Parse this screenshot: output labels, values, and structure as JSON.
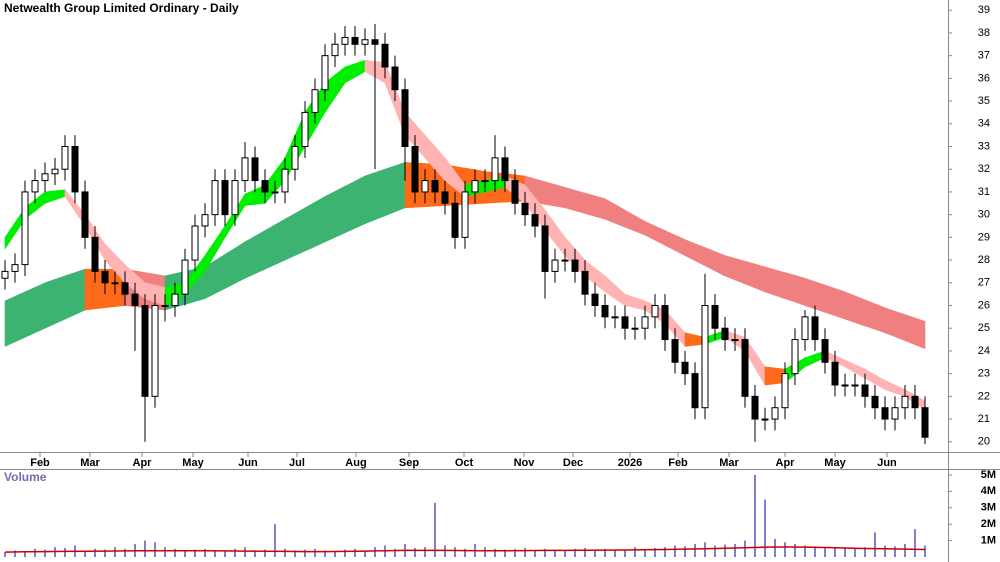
{
  "chart_data": {
    "type": "candlestick",
    "title": "Netwealth Group Limited Ordinary - Daily",
    "x": [
      0,
      1,
      2,
      3,
      4,
      5,
      6,
      7,
      8,
      9,
      10,
      11,
      12,
      13,
      14,
      15,
      16,
      17,
      18,
      19,
      20,
      21,
      22,
      23,
      24,
      25,
      26,
      27,
      28,
      29,
      30,
      31,
      32,
      33,
      34,
      35,
      36,
      37,
      38,
      39,
      40,
      41,
      42,
      43,
      44,
      45,
      46,
      47,
      48,
      49,
      50,
      51,
      52,
      53,
      54,
      55,
      56,
      57,
      58,
      59,
      60,
      61,
      62,
      63,
      64,
      65,
      66,
      67,
      68,
      69,
      70,
      71,
      72,
      73,
      74,
      75,
      76,
      77,
      78,
      79,
      80,
      81,
      82,
      83,
      84,
      85,
      86,
      87,
      88,
      89,
      90,
      91,
      92
    ],
    "open": [
      27.2,
      27.5,
      27.8,
      31,
      31.5,
      31.8,
      32,
      33,
      31,
      29,
      27.5,
      27,
      27,
      26.5,
      26,
      22,
      26,
      26,
      26.5,
      28,
      29.5,
      30,
      31.5,
      30,
      31.5,
      32.5,
      31.5,
      31,
      31,
      32,
      33,
      34.5,
      35.5,
      37,
      37.5,
      37.8,
      37.5,
      37.7,
      37.5,
      36.5,
      35.5,
      33,
      31,
      31.5,
      31,
      30.5,
      29,
      31,
      31.5,
      31.5,
      32.5,
      31.5,
      30.5,
      30,
      29.5,
      27.5,
      28,
      28,
      27.5,
      26.5,
      26,
      25.5,
      25.5,
      25,
      25,
      25.5,
      26,
      24.5,
      23.5,
      23,
      21.5,
      26,
      25,
      24.5,
      24.5,
      22,
      21,
      21,
      21.5,
      23,
      24.5,
      25.5,
      24.5,
      23.5,
      22.5,
      22.5,
      22.5,
      22,
      21.5,
      21,
      21.5,
      22,
      21.5
    ],
    "high": [
      28,
      28.3,
      31.5,
      32,
      32.3,
      32.5,
      33.5,
      33.5,
      31.5,
      29.5,
      28,
      27.5,
      27.5,
      27,
      26.5,
      26.5,
      26.5,
      27,
      28.5,
      30,
      30.5,
      32,
      32,
      32,
      33.2,
      33,
      32,
      31.5,
      32.5,
      33.5,
      35,
      36,
      37.5,
      38,
      38.3,
      38.3,
      38.2,
      38.4,
      38,
      37,
      36,
      33.5,
      32,
      32,
      31.5,
      31,
      31.5,
      32,
      32,
      33.5,
      33,
      32,
      31,
      30.5,
      30,
      28.5,
      28.5,
      28.5,
      28,
      27,
      26.5,
      26,
      26,
      25.5,
      26,
      26.5,
      26.5,
      25,
      24,
      23.5,
      27.4,
      26.5,
      25.5,
      25,
      25,
      22.5,
      21.5,
      22,
      23.5,
      25,
      25.8,
      26,
      25,
      24,
      23,
      23,
      23,
      22.5,
      22,
      22,
      22.5,
      22.5,
      22
    ],
    "low": [
      26.7,
      27,
      27.3,
      30.5,
      31,
      31.3,
      31.5,
      30.5,
      28.5,
      27,
      26.5,
      26.5,
      26,
      24,
      20,
      21.5,
      25.3,
      25.5,
      26,
      27.5,
      29,
      29.5,
      29.5,
      29.5,
      31,
      31,
      30.5,
      30.5,
      30.5,
      31.5,
      32.5,
      34,
      35,
      36.5,
      37,
      37,
      37,
      32,
      36,
      35,
      31.5,
      30.5,
      30.5,
      30.5,
      30,
      28.5,
      28.5,
      30.5,
      31,
      31,
      31,
      30,
      29.5,
      29,
      26.3,
      27,
      27.5,
      27,
      26,
      25.5,
      25,
      25,
      24.5,
      24.5,
      24.5,
      25,
      24,
      23,
      22.5,
      21,
      21,
      24.5,
      24,
      24,
      21.5,
      20,
      20.5,
      20.5,
      21,
      22.5,
      24,
      24,
      23,
      22,
      22,
      22,
      21.5,
      21,
      20.5,
      20.5,
      21,
      21,
      19.9
    ],
    "close": [
      27.5,
      27.8,
      31,
      31.5,
      31.8,
      32,
      33,
      31,
      29,
      27.5,
      27,
      27,
      26.5,
      26,
      22,
      26,
      26,
      26.5,
      28,
      29.5,
      30,
      31.5,
      30,
      31.5,
      32.5,
      31.5,
      31,
      31,
      32,
      33,
      34.5,
      35.5,
      37,
      37.5,
      37.8,
      37.5,
      37.7,
      37.5,
      36.5,
      35.5,
      33,
      31,
      31.5,
      31,
      30.5,
      29,
      31,
      31.5,
      31.5,
      32.5,
      31.5,
      30.5,
      30,
      29.5,
      27.5,
      28,
      28,
      27.5,
      26.5,
      26,
      25.5,
      25.5,
      25,
      25,
      25.5,
      26,
      24.5,
      23.5,
      23,
      21.5,
      26,
      25,
      24.5,
      24.5,
      22,
      21,
      21,
      21.5,
      23,
      24.5,
      25.5,
      24.5,
      23.5,
      22.5,
      22.5,
      22.5,
      22,
      21.5,
      21,
      21.5,
      22,
      21.5,
      20.2
    ],
    "candle_up_color": "#ffffff",
    "candle_down_color": "#000000",
    "xlim": [
      -0.5,
      94.3
    ],
    "xticks": [
      {
        "value": 3.5,
        "label": "Feb"
      },
      {
        "value": 8.5,
        "label": "Mar"
      },
      {
        "value": 13.7,
        "label": "Apr"
      },
      {
        "value": 18.8,
        "label": "May"
      },
      {
        "value": 24.3,
        "label": "Jun"
      },
      {
        "value": 29.2,
        "label": "Jul"
      },
      {
        "value": 35.1,
        "label": "Aug"
      },
      {
        "value": 40.4,
        "label": "Sep"
      },
      {
        "value": 45.9,
        "label": "Oct"
      },
      {
        "value": 51.9,
        "label": "Nov"
      },
      {
        "value": 56.8,
        "label": "Dec"
      },
      {
        "value": 62.5,
        "label": "2026"
      },
      {
        "value": 67.3,
        "label": "Feb"
      },
      {
        "value": 72.4,
        "label": "Mar"
      },
      {
        "value": 78,
        "label": "Apr"
      },
      {
        "value": 83,
        "label": "May"
      },
      {
        "value": 88.2,
        "label": "Jun"
      }
    ],
    "ylim": [
      19.55,
      39.45
    ],
    "yticks": [
      20,
      21,
      22,
      23,
      24,
      25,
      26,
      27,
      28,
      29,
      30,
      31,
      32,
      33,
      34,
      35,
      36,
      37,
      38,
      39
    ],
    "bands": {
      "x": [
        0,
        2,
        4,
        6,
        8,
        10,
        12,
        14,
        16,
        18,
        20,
        22,
        24,
        26,
        28,
        30,
        32,
        34,
        36,
        38,
        40,
        42,
        44,
        46,
        48,
        50,
        52,
        54,
        56,
        58,
        60,
        62,
        64,
        66,
        68,
        70,
        72,
        74,
        76,
        78,
        80,
        82,
        84,
        86,
        88,
        90,
        92
      ],
      "items": [
        {
          "upper": [
            26.2,
            26.6,
            27,
            27.3,
            27.6,
            27.6,
            27.6,
            27.45,
            27.3,
            27.5,
            27.7,
            28.25,
            28.8,
            29.3,
            29.8,
            30.3,
            30.8,
            31.25,
            31.7,
            32,
            32.3,
            32.25,
            32.2,
            32.05,
            31.9,
            31.8,
            31.7,
            31.45,
            31.2,
            30.95,
            30.7,
            30.2,
            29.7,
            29.3,
            28.9,
            28.55,
            28.2,
            27.95,
            27.7,
            27.45,
            27.2,
            26.9,
            26.6,
            26.25,
            25.9,
            25.6,
            25.3
          ],
          "lower": [
            24.2,
            24.6,
            25,
            25.4,
            25.8,
            25.9,
            26,
            25.9,
            25.8,
            26.05,
            26.3,
            26.75,
            27.2,
            27.6,
            28,
            28.4,
            28.8,
            29.2,
            29.6,
            29.95,
            30.3,
            30.35,
            30.4,
            30.45,
            30.5,
            30.55,
            30.6,
            30.45,
            30.3,
            30.05,
            29.8,
            29.45,
            29.1,
            28.65,
            28.2,
            27.75,
            27.3,
            26.95,
            26.6,
            26.3,
            26,
            25.7,
            25.4,
            25.1,
            24.8,
            24.45,
            24.1
          ],
          "up_color": "#3cb371",
          "down_color": "#f08080",
          "mixed_color": "#ff6a1a"
        },
        {
          "upper": [
            29,
            30.3,
            31,
            31.1,
            30,
            28.7,
            27.8,
            27,
            26.8,
            27,
            28.2,
            29.5,
            30.9,
            31.3,
            32.5,
            34.5,
            35.8,
            36.5,
            36.8,
            36.7,
            34.5,
            33.5,
            32.5,
            31.3,
            31.5,
            31.7,
            31.3,
            30.2,
            29,
            28,
            27.3,
            26.5,
            26.2,
            25.8,
            24.8,
            24.6,
            24.9,
            24.6,
            23.3,
            23.2,
            23.7,
            24,
            23.6,
            23.2,
            22.7,
            22.3,
            21.8
          ],
          "lower": [
            28.5,
            29.8,
            30.5,
            30.8,
            29.5,
            28,
            27,
            26.3,
            26,
            26.5,
            27.5,
            29,
            30.4,
            30.5,
            31.5,
            33,
            34.5,
            35.8,
            36.3,
            35.8,
            33.5,
            32.5,
            31.5,
            30.8,
            31,
            31.2,
            30.5,
            29.3,
            28.2,
            27.3,
            26.6,
            26,
            25.8,
            25.2,
            24.2,
            24.3,
            24.6,
            24,
            22.5,
            22.6,
            23.3,
            23.7,
            23.3,
            22.8,
            22.3,
            22,
            21.4
          ],
          "up_color": "#00ee00",
          "down_color": "#ffb3b3",
          "mixed_color": "#ff6a1a"
        }
      ]
    },
    "volume": {
      "label": "Volume",
      "values": [
        300000,
        400000,
        350000,
        500000,
        450000,
        600000,
        550000,
        700000,
        400000,
        500000,
        450000,
        600000,
        500000,
        800000,
        1000000,
        900000,
        600000,
        500000,
        400000,
        450000,
        500000,
        400000,
        350000,
        500000,
        600000,
        400000,
        450000,
        2000000,
        500000,
        400000,
        450000,
        500000,
        400000,
        350000,
        450000,
        500000,
        400000,
        600000,
        700000,
        500000,
        800000,
        550000,
        600000,
        3300000,
        700000,
        600000,
        500000,
        800000,
        600000,
        500000,
        450000,
        500000,
        550000,
        400000,
        500000,
        450000,
        400000,
        500000,
        550000,
        450000,
        500000,
        400000,
        450000,
        600000,
        500000,
        550000,
        600000,
        700000,
        650000,
        800000,
        900000,
        700000,
        750000,
        800000,
        1000000,
        5000000,
        3500000,
        1100000,
        900000,
        800000,
        700000,
        650000,
        600000,
        550000,
        600000,
        550000,
        600000,
        1500000,
        700000,
        650000,
        800000,
        1700000,
        700000
      ],
      "color": "#8080c8",
      "average": [
        300000,
        320000,
        330000,
        340000,
        350000,
        360000,
        370000,
        380000,
        380000,
        380000,
        380000,
        370000,
        360000,
        350000,
        340000,
        330000,
        330000,
        340000,
        360000,
        380000,
        400000,
        400000,
        400000,
        390000,
        380000,
        380000,
        390000,
        400000,
        400000,
        410000,
        420000,
        430000,
        440000,
        460000,
        480000,
        500000,
        530000,
        560000,
        600000,
        610000,
        600000,
        580000,
        550000,
        520000,
        500000,
        480000,
        460000
      ],
      "average_color": "#cc0000",
      "ylim": [
        0,
        5300000
      ],
      "yticks": [
        {
          "value": 1000000,
          "label": "1M"
        },
        {
          "value": 2000000,
          "label": "2M"
        },
        {
          "value": 3000000,
          "label": "3M"
        },
        {
          "value": 4000000,
          "label": "4M"
        },
        {
          "value": 5000000,
          "label": "5M"
        }
      ]
    }
  }
}
